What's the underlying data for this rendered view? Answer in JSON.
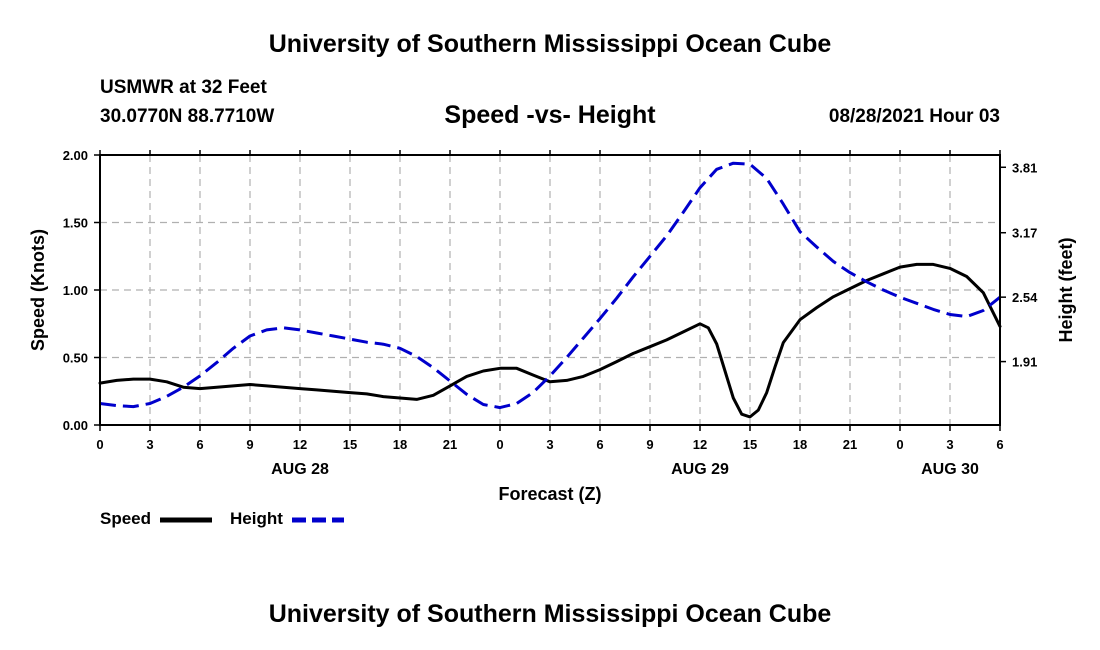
{
  "header": {
    "title": "University of Southern Mississippi Ocean Cube",
    "station_name": "USMWR at 32 Feet",
    "station_coords": "30.0770N  88.7710W",
    "chart_title": "Speed -vs- Height",
    "forecast_time": "08/28/2021 Hour 03"
  },
  "footer": {
    "title": "University of Southern Mississippi Ocean Cube"
  },
  "legend": {
    "speed_label": "Speed",
    "height_label": "Height"
  },
  "colors": {
    "speed": "#000000",
    "height": "#0000cc",
    "grid": "#b0b0b0"
  },
  "chart_data": {
    "type": "line",
    "title": "Speed -vs- Height",
    "xlabel": "Forecast (Z)",
    "ylabel": "Speed (Knots)",
    "y2label": "Height (feet)",
    "xlim": [
      0,
      54
    ],
    "ylim": [
      0,
      2.0
    ],
    "y2lim": [
      1.29,
      3.93
    ],
    "x_ticks": [
      0,
      3,
      6,
      9,
      12,
      15,
      18,
      21,
      24,
      27,
      30,
      33,
      36,
      39,
      42,
      45,
      48,
      51,
      54
    ],
    "x_tick_labels": [
      "0",
      "3",
      "6",
      "9",
      "12",
      "15",
      "18",
      "21",
      "0",
      "3",
      "6",
      "9",
      "12",
      "15",
      "18",
      "21",
      "0",
      "3",
      "6"
    ],
    "date_labels": [
      {
        "x": 12,
        "label": "AUG 28"
      },
      {
        "x": 36,
        "label": "AUG 29"
      },
      {
        "x": 51,
        "label": "AUG 30"
      }
    ],
    "y_ticks": [
      0,
      0.5,
      1.0,
      1.5,
      2.0
    ],
    "y_tick_labels": [
      "0.00",
      "0.50",
      "1.00",
      "1.50",
      "2.00"
    ],
    "y2_ticks": [
      1.91,
      2.54,
      3.17,
      3.81
    ],
    "y2_tick_labels": [
      "1.91",
      "2.54",
      "3.17",
      "3.81"
    ],
    "grid": true,
    "series": [
      {
        "name": "Speed",
        "axis": "left",
        "style": "solid",
        "x": [
          0,
          1,
          2,
          3,
          4,
          5,
          6,
          7,
          8,
          9,
          10,
          11,
          12,
          13,
          14,
          15,
          16,
          17,
          18,
          19,
          20,
          21,
          22,
          23,
          24,
          25,
          26,
          27,
          28,
          29,
          30,
          31,
          32,
          33,
          34,
          35,
          36,
          36.5,
          37,
          37.5,
          38,
          38.5,
          39,
          39.5,
          40,
          40.5,
          41,
          42,
          43,
          44,
          45,
          46,
          47,
          48,
          49,
          50,
          51,
          52,
          53,
          54
        ],
        "values": [
          0.31,
          0.33,
          0.34,
          0.34,
          0.32,
          0.28,
          0.27,
          0.28,
          0.29,
          0.3,
          0.29,
          0.28,
          0.27,
          0.26,
          0.25,
          0.24,
          0.23,
          0.21,
          0.2,
          0.19,
          0.22,
          0.29,
          0.36,
          0.4,
          0.42,
          0.42,
          0.37,
          0.32,
          0.33,
          0.36,
          0.41,
          0.47,
          0.53,
          0.58,
          0.63,
          0.69,
          0.75,
          0.72,
          0.6,
          0.4,
          0.2,
          0.08,
          0.06,
          0.11,
          0.24,
          0.43,
          0.61,
          0.78,
          0.87,
          0.95,
          1.01,
          1.07,
          1.12,
          1.17,
          1.19,
          1.19,
          1.16,
          1.1,
          0.98,
          0.73
        ]
      },
      {
        "name": "Height",
        "axis": "right",
        "style": "dashed",
        "x": [
          0,
          1,
          2,
          3,
          4,
          5,
          6,
          7,
          8,
          9,
          10,
          11,
          12,
          13,
          14,
          15,
          16,
          17,
          18,
          19,
          20,
          21,
          22,
          23,
          24,
          25,
          26,
          27,
          28,
          29,
          30,
          31,
          32,
          33,
          34,
          35,
          36,
          37,
          38,
          39,
          40,
          41,
          42,
          43,
          44,
          45,
          46,
          47,
          48,
          49,
          50,
          51,
          52,
          53,
          54
        ],
        "values": [
          1.5,
          1.48,
          1.47,
          1.5,
          1.57,
          1.66,
          1.77,
          1.9,
          2.04,
          2.16,
          2.22,
          2.24,
          2.22,
          2.19,
          2.16,
          2.13,
          2.1,
          2.08,
          2.04,
          1.96,
          1.85,
          1.72,
          1.59,
          1.49,
          1.46,
          1.5,
          1.61,
          1.77,
          1.95,
          2.14,
          2.33,
          2.53,
          2.74,
          2.94,
          3.14,
          3.37,
          3.61,
          3.79,
          3.85,
          3.84,
          3.7,
          3.45,
          3.18,
          3.03,
          2.89,
          2.78,
          2.69,
          2.61,
          2.54,
          2.48,
          2.42,
          2.37,
          2.35,
          2.41,
          2.54
        ]
      }
    ]
  }
}
